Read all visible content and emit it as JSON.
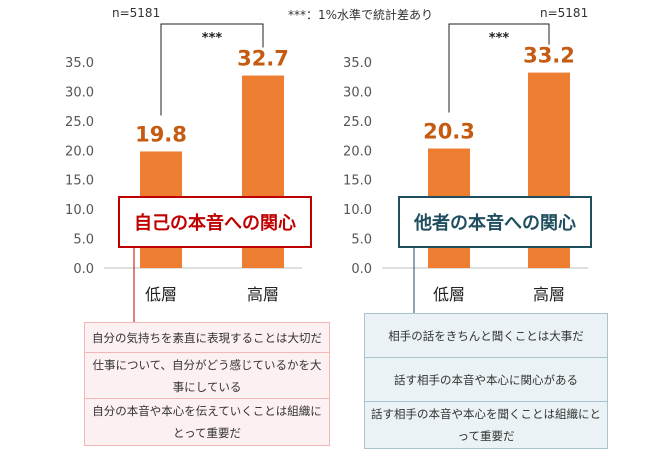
{
  "notes": {
    "left_n": "n=5181",
    "center": "***：1%水準で統計差あり",
    "right_n": "n=5181"
  },
  "chart_data": [
    {
      "type": "bar",
      "title": "自己の本音への関心",
      "categories": [
        "低層",
        "高層"
      ],
      "values": [
        19.8,
        32.7
      ],
      "value_labels": [
        "19.8",
        "32.7"
      ],
      "ylim": [
        0,
        35
      ],
      "yticks": [
        "0.0",
        "5.0",
        "10.0",
        "15.0",
        "20.0",
        "25.0",
        "30.0",
        "35.0"
      ],
      "significance": "***",
      "n_label": "n=5181",
      "items": [
        "自分の気持ちを素直に表現することは大切だ",
        "仕事について、自分がどう感じているかを大事にしている",
        "自分の本音や本心を伝えていくことは組織にとって重要だ"
      ]
    },
    {
      "type": "bar",
      "title": "他者の本音への関心",
      "categories": [
        "低層",
        "高層"
      ],
      "values": [
        20.3,
        33.2
      ],
      "value_labels": [
        "20.3",
        "33.2"
      ],
      "ylim": [
        0,
        35
      ],
      "yticks": [
        "0.0",
        "5.0",
        "10.0",
        "15.0",
        "20.0",
        "25.0",
        "30.0",
        "35.0"
      ],
      "significance": "***",
      "n_label": "n=5181",
      "items": [
        "相手の話をきちんと聞くことは大事だ",
        "話す相手の本音や本心に関心がある",
        "話す相手の本音や本心を聞くことは組織にとって重要だ"
      ]
    }
  ],
  "colors": {
    "bar": "#ED7D31",
    "value_text": "#C55A11",
    "left_accent": "#C00000",
    "left_fill": "#FDF0F0",
    "left_item_border": "#F2B8B8",
    "right_accent": "#1F4E5F",
    "right_fill": "#EAF2F5",
    "right_item_border": "#A9C4CF",
    "axis": "#BFBFBF"
  }
}
